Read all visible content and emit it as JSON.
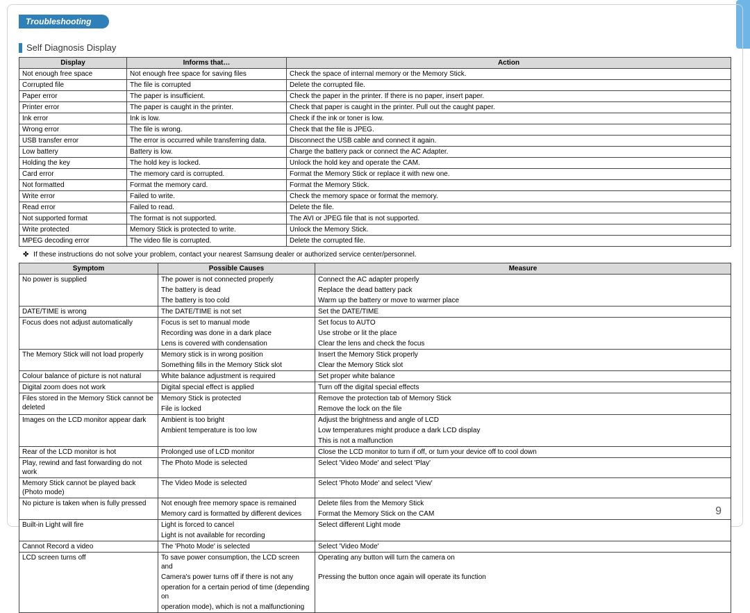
{
  "header": {
    "tag": "Troubleshooting",
    "subheading": "Self Diagnosis Display",
    "pageNumber": "9"
  },
  "colors": {
    "accent": "#2f7fb8",
    "sideTab": "#6fb6e6",
    "headerBg": "#d9d9d9",
    "border": "#444444"
  },
  "table1": {
    "headers": [
      "Display",
      "Informs that…",
      "Action"
    ],
    "rows": [
      [
        "Not enough free space",
        "Not enough free space for saving files",
        "Check the space of internal memory or the Memory Stick."
      ],
      [
        "Corrupted file",
        "The file is corrupted",
        "Delete the corrupted file."
      ],
      [
        "Paper error",
        "The paper is insufficient.",
        "Check the paper in the printer. If there is no paper, insert paper."
      ],
      [
        "Printer error",
        "The paper is caught in the printer.",
        "Check that paper is caught in the printer. Pull out the caught paper."
      ],
      [
        "Ink error",
        "Ink is low.",
        "Check if the ink or toner is low."
      ],
      [
        "Wrong error",
        "The file is wrong.",
        "Check that the file is JPEG."
      ],
      [
        "USB transfer error",
        "The error is occurred while transferring data.",
        "Disconnect the USB cable and connect it again."
      ],
      [
        "Low battery",
        "Battery is low.",
        "Charge the battery pack or connect the AC Adapter."
      ],
      [
        "Holding the key",
        "The hold key is locked.",
        "Unlock the hold key and operate the CAM."
      ],
      [
        "Card error",
        "The memory card is corrupted.",
        "Format the Memory Stick or replace it with new one."
      ],
      [
        "Not formatted",
        "Format the memory card.",
        "Format the Memory Stick."
      ],
      [
        "Write error",
        "Failed to write.",
        "Check the memory space or format the memory."
      ],
      [
        "Read error",
        "Failed to read.",
        "Delete the file."
      ],
      [
        "Not supported format",
        "The format is not supported.",
        "The AVI or JPEG file that is not supported."
      ],
      [
        "Write protected",
        "Memory Stick is protected to write.",
        "Unlock the Memory Stick."
      ],
      [
        "MPEG decoding error",
        "The video file is corrupted.",
        "Delete the corrupted file."
      ]
    ]
  },
  "note": "If these instructions do not solve your problem, contact your nearest Samsung dealer or authorized service center/personnel.",
  "table2": {
    "headers": [
      "Symptom",
      "Possible Causes",
      "Measure"
    ],
    "groups": [
      {
        "symptom": "No power is supplied",
        "causes": [
          "The power is not connected properly",
          "The battery is dead",
          "The battery is too cold"
        ],
        "measures": [
          "Connect the AC adapter properly",
          "Replace the dead battery pack",
          "Warm up the battery or move to warmer place"
        ]
      },
      {
        "symptom": "DATE/TIME is wrong",
        "causes": [
          "The DATE/TIME is not set"
        ],
        "measures": [
          "Set the DATE/TIME"
        ]
      },
      {
        "symptom": "Focus does not adjust automatically",
        "causes": [
          "Focus is set to manual mode",
          "Recording was done in a dark place",
          "Lens is covered with condensation"
        ],
        "measures": [
          "Set focus to AUTO",
          "Use strobe or lit the place",
          "Clear the lens and check the focus"
        ]
      },
      {
        "symptom": "The Memory Stick will not load properly",
        "causes": [
          "Memory stick is in wrong position",
          "Something fills in the Memory Stick slot"
        ],
        "measures": [
          "Insert the Memory Stick properly",
          "Clear the Memory Stick slot"
        ]
      },
      {
        "symptom": "Colour balance of picture is not natural",
        "causes": [
          "White balance adjustment is required"
        ],
        "measures": [
          "Set proper white balance"
        ]
      },
      {
        "symptom": "Digital zoom does not work",
        "causes": [
          "Digital special effect is applied"
        ],
        "measures": [
          "Turn off the digital special effects"
        ]
      },
      {
        "symptom": "Files stored in the Memory Stick cannot be deleted",
        "causes": [
          "Memory Stick is protected",
          "File is locked"
        ],
        "measures": [
          "Remove the protection tab of Memory Stick",
          "Remove the lock on the file"
        ]
      },
      {
        "symptom": "Images on the LCD monitor appear dark",
        "causes": [
          "Ambient is too bright",
          "Ambient temperature is too low",
          ""
        ],
        "measures": [
          "Adjust the brightness and angle of LCD",
          "Low temperatures might produce a dark LCD display",
          "This is not a malfunction"
        ]
      },
      {
        "symptom": "Rear of the LCD monitor is hot",
        "causes": [
          "Prolonged use of LCD monitor"
        ],
        "measures": [
          "Close the LCD monitor to turn if off, or turn your device off to cool down"
        ]
      },
      {
        "symptom": "Play, rewind and fast forwarding do not work",
        "causes": [
          "The Photo Mode is selected"
        ],
        "measures": [
          "Select 'Video Mode' and select 'Play'"
        ]
      },
      {
        "symptom": "Memory Stick cannot be played back (Photo mode)",
        "causes": [
          "The Video Mode is selected"
        ],
        "measures": [
          "Select 'Photo Mode' and select 'View'"
        ]
      },
      {
        "symptom": "No picture is taken when is fully pressed",
        "causes": [
          "Not enough free memory space is remained",
          "Memory card is formatted by different devices"
        ],
        "measures": [
          "Delete files from the Memory Stick",
          "Format the Memory Stick on the CAM"
        ]
      },
      {
        "symptom": "Built-in Light will fire",
        "causes": [
          "Light is forced to cancel",
          "Light is not available for recording"
        ],
        "measures": [
          "Select different Light mode",
          ""
        ]
      },
      {
        "symptom": "Cannot Record a video",
        "causes": [
          "The 'Photo Mode' is selected"
        ],
        "measures": [
          "Select 'Video Mode'"
        ]
      },
      {
        "symptom": "LCD screen turns off",
        "causes": [
          "To save power consumption, the LCD screen and",
          "Camera's power turns off if there is not any",
          "operation for a certain period of time (depending on",
          "operation mode), which is not a malfunctioning"
        ],
        "measures": [
          "Operating any button will turn the camera on",
          "Pressing the button once again will operate its function",
          "",
          ""
        ]
      }
    ]
  }
}
